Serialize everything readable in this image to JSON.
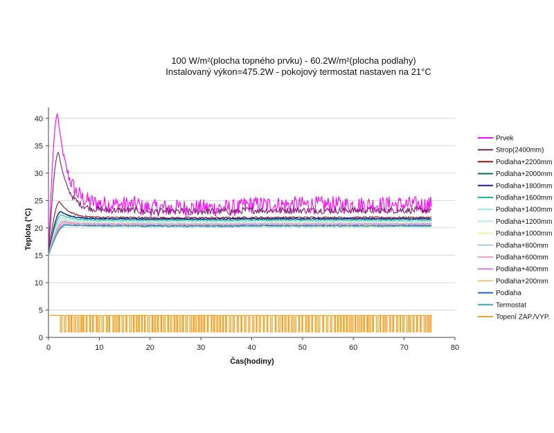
{
  "chart_data": {
    "type": "line",
    "title_lines": [
      "100 W/m²(plocha topného prvku) - 60.2W/m²(plocha podlahy)",
      "Instalovaný výkon=475.2W - pokojový termostat nastaven na 21°C"
    ],
    "xlabel": "Čas(hodiny)",
    "ylabel": "Teplota (°C)",
    "xlim": [
      0,
      80
    ],
    "ylim": [
      0,
      42
    ],
    "x_ticks": [
      0,
      10,
      20,
      30,
      40,
      50,
      60,
      70,
      80
    ],
    "y_ticks": [
      0,
      5,
      10,
      15,
      20,
      25,
      30,
      35,
      40
    ],
    "grid": "horizontal",
    "legend_position": "right",
    "series": [
      {
        "name": "Prvek",
        "color": "#ff00ff",
        "start": 15.5,
        "peak_x": 1.8,
        "peak": 40.8,
        "steady": 24.2,
        "noise": 1.6,
        "kind": "temp"
      },
      {
        "name": "Strop(2400mm)",
        "color": "#7b1f6e",
        "start": 15.0,
        "peak_x": 2.0,
        "peak": 33.8,
        "steady": 23.2,
        "noise": 0.6,
        "kind": "temp"
      },
      {
        "name": "Podlaha+2200mm",
        "color": "#8b1010",
        "start": 15.0,
        "peak_x": 2.2,
        "peak": 24.8,
        "steady": 21.9,
        "noise": 0.15,
        "kind": "temp"
      },
      {
        "name": "Podlaha+2000mm",
        "color": "#006b6b",
        "start": 15.0,
        "peak_x": 2.4,
        "peak": 23.0,
        "steady": 21.6,
        "noise": 0.1,
        "kind": "temp"
      },
      {
        "name": "Podlaha+1800mm",
        "color": "#1a1aa0",
        "start": 15.0,
        "peak_x": 2.5,
        "peak": 23.0,
        "steady": 21.7,
        "noise": 0.1,
        "kind": "temp"
      },
      {
        "name": "Podlaha+1600mm",
        "color": "#20b2aa",
        "start": 15.0,
        "peak_x": 2.6,
        "peak": 22.4,
        "steady": 21.4,
        "noise": 0.1,
        "kind": "temp"
      },
      {
        "name": "Podlaha+1400mm",
        "color": "#a0e6d8",
        "start": 15.0,
        "peak_x": 2.7,
        "peak": 22.0,
        "steady": 21.2,
        "noise": 0.1,
        "kind": "temp"
      },
      {
        "name": "Podlaha+1200mm",
        "color": "#b8e8f0",
        "start": 15.0,
        "peak_x": 2.8,
        "peak": 21.8,
        "steady": 21.0,
        "noise": 0.1,
        "kind": "temp"
      },
      {
        "name": "Podlaha+1000mm",
        "color": "#f4f0a0",
        "start": 15.0,
        "peak_x": 2.9,
        "peak": 21.6,
        "steady": 20.9,
        "noise": 0.1,
        "kind": "temp"
      },
      {
        "name": "Podlaha+800mm",
        "color": "#a8c8f0",
        "start": 15.0,
        "peak_x": 3.0,
        "peak": 21.4,
        "steady": 20.8,
        "noise": 0.1,
        "kind": "temp"
      },
      {
        "name": "Podlaha+600mm",
        "color": "#f0a0c8",
        "start": 15.0,
        "peak_x": 3.1,
        "peak": 21.2,
        "steady": 20.7,
        "noise": 0.1,
        "kind": "temp"
      },
      {
        "name": "Podlaha+400mm",
        "color": "#d080e8",
        "start": 15.0,
        "peak_x": 3.2,
        "peak": 21.0,
        "steady": 20.6,
        "noise": 0.1,
        "kind": "temp"
      },
      {
        "name": "Podlaha+200mm",
        "color": "#f0c080",
        "start": 15.0,
        "peak_x": 3.3,
        "peak": 20.8,
        "steady": 20.5,
        "noise": 0.1,
        "kind": "temp"
      },
      {
        "name": "Podlaha",
        "color": "#1f5fd0",
        "start": 15.0,
        "peak_x": 3.4,
        "peak": 20.6,
        "steady": 20.4,
        "noise": 0.1,
        "kind": "temp"
      },
      {
        "name": "Termostat",
        "color": "#30b0b0",
        "start": 15.0,
        "peak_x": 3.5,
        "peak": 20.5,
        "steady": 20.3,
        "noise": 0.1,
        "kind": "temp"
      },
      {
        "name": "Topení ZAP./VYP.",
        "color": "#f5a020",
        "on": 4,
        "off": 1,
        "kind": "onoff",
        "t_end": 75.5
      }
    ]
  }
}
